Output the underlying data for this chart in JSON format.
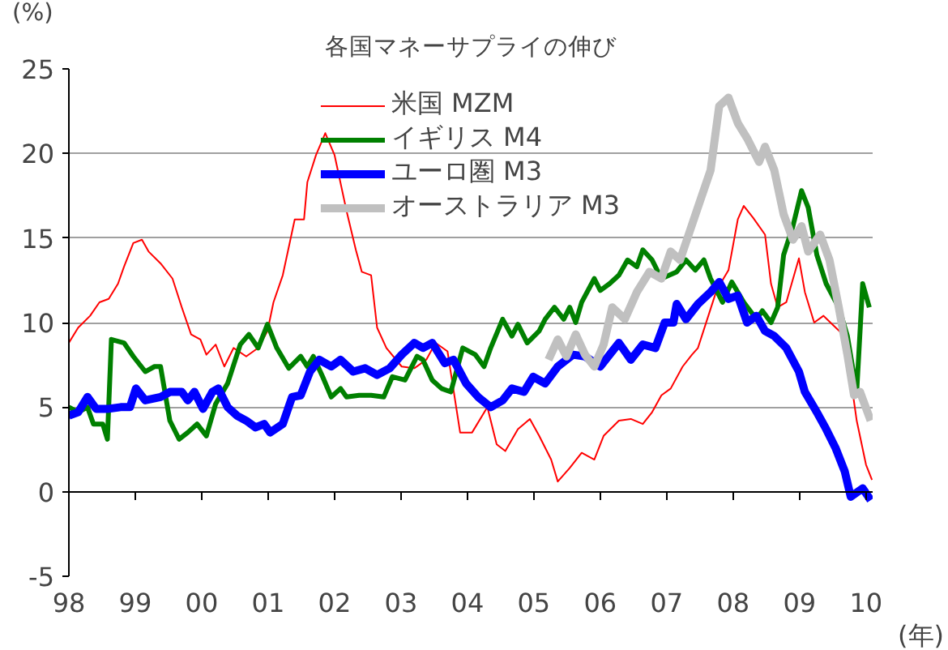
{
  "chart_data": {
    "type": "line",
    "title": "各国マネーサプライの伸び",
    "ylabel": "(%)",
    "xlabel": "(年)",
    "xlim": [
      1998,
      2010.1
    ],
    "ylim": [
      -5,
      25
    ],
    "xticks": [
      {
        "value": 1998,
        "label": "98"
      },
      {
        "value": 1999,
        "label": "99"
      },
      {
        "value": 2000,
        "label": "00"
      },
      {
        "value": 2001,
        "label": "01"
      },
      {
        "value": 2002,
        "label": "02"
      },
      {
        "value": 2003,
        "label": "03"
      },
      {
        "value": 2004,
        "label": "04"
      },
      {
        "value": 2005,
        "label": "05"
      },
      {
        "value": 2006,
        "label": "06"
      },
      {
        "value": 2007,
        "label": "07"
      },
      {
        "value": 2008,
        "label": "08"
      },
      {
        "value": 2009,
        "label": "09"
      },
      {
        "value": 2010,
        "label": "10"
      }
    ],
    "yticks": [
      -5,
      0,
      5,
      10,
      15,
      20,
      25
    ],
    "grid": "y",
    "legend": "top",
    "line_style": "solid",
    "marker": "none",
    "series": [
      {
        "name": "米国 MZM",
        "color": "#ff0000",
        "x": [
          1998.0,
          1998.14,
          1998.32,
          1998.46,
          1998.6,
          1998.74,
          1998.83,
          1998.97,
          1999.1,
          1999.2,
          1999.38,
          1999.56,
          1999.7,
          1999.84,
          1999.98,
          2000.07,
          2000.21,
          2000.34,
          2000.48,
          2000.67,
          2000.85,
          2000.99,
          2001.08,
          2001.22,
          2001.4,
          2001.54,
          2001.59,
          2001.72,
          2001.86,
          2002.0,
          2002.18,
          2002.32,
          2002.41,
          2002.55,
          2002.64,
          2002.78,
          2003.01,
          2003.2,
          2003.38,
          2003.52,
          2003.7,
          2003.89,
          2004.07,
          2004.3,
          2004.44,
          2004.57,
          2004.76,
          2004.94,
          2005.08,
          2005.26,
          2005.36,
          2005.54,
          2005.72,
          2005.91,
          2006.05,
          2006.28,
          2006.46,
          2006.64,
          2006.78,
          2006.92,
          2007.06,
          2007.24,
          2007.38,
          2007.47,
          2007.61,
          2007.75,
          2007.93,
          2008.07,
          2008.16,
          2008.3,
          2008.48,
          2008.57,
          2008.67,
          2008.8,
          2008.99,
          2009.08,
          2009.22,
          2009.36,
          2009.49,
          2009.68,
          2009.86,
          2010.0,
          2010.09
        ],
        "values": [
          8.8,
          9.7,
          10.4,
          11.2,
          11.4,
          12.3,
          13.3,
          14.7,
          14.9,
          14.2,
          13.5,
          12.6,
          10.9,
          9.3,
          9.0,
          8.1,
          8.7,
          7.4,
          8.5,
          8.0,
          8.5,
          9.5,
          11.2,
          12.8,
          16.1,
          16.1,
          18.3,
          19.9,
          21.2,
          19.9,
          16.6,
          14.3,
          13.0,
          12.8,
          9.7,
          8.5,
          7.4,
          7.3,
          7.8,
          8.8,
          8.3,
          3.5,
          3.5,
          5.0,
          2.8,
          2.4,
          3.7,
          4.3,
          3.3,
          1.9,
          0.6,
          1.4,
          2.3,
          1.9,
          3.3,
          4.2,
          4.3,
          4.0,
          4.7,
          5.7,
          6.1,
          7.4,
          8.1,
          8.5,
          10.2,
          11.9,
          13.1,
          16.1,
          16.9,
          16.2,
          15.2,
          12.3,
          10.9,
          11.2,
          13.8,
          11.8,
          10.0,
          10.4,
          9.9,
          9.2,
          4.2,
          1.6,
          0.7
        ]
      },
      {
        "name": "イギリス M4",
        "color": "#008000",
        "x": [
          1998.0,
          1998.14,
          1998.28,
          1998.37,
          1998.51,
          1998.58,
          1998.64,
          1998.83,
          1998.97,
          1999.15,
          1999.29,
          1999.38,
          1999.52,
          1999.66,
          1999.79,
          1999.93,
          2000.07,
          2000.21,
          2000.39,
          2000.58,
          2000.71,
          2000.85,
          2000.99,
          2001.13,
          2001.31,
          2001.49,
          2001.59,
          2001.68,
          2001.82,
          2001.95,
          2002.09,
          2002.18,
          2002.37,
          2002.55,
          2002.74,
          2002.87,
          2003.06,
          2003.24,
          2003.33,
          2003.47,
          2003.61,
          2003.75,
          2003.93,
          2004.12,
          2004.25,
          2004.35,
          2004.53,
          2004.67,
          2004.76,
          2004.9,
          2005.08,
          2005.17,
          2005.31,
          2005.45,
          2005.54,
          2005.63,
          2005.72,
          2005.91,
          2006.0,
          2006.14,
          2006.28,
          2006.41,
          2006.55,
          2006.64,
          2006.78,
          2006.92,
          2007.15,
          2007.29,
          2007.43,
          2007.56,
          2007.66,
          2007.84,
          2007.98,
          2008.16,
          2008.35,
          2008.44,
          2008.57,
          2008.67,
          2008.76,
          2008.9,
          2009.03,
          2009.13,
          2009.26,
          2009.4,
          2009.59,
          2009.72,
          2009.86,
          2009.95,
          2010.05
        ],
        "values": [
          5.0,
          4.7,
          5.0,
          4.0,
          4.0,
          3.1,
          9.0,
          8.8,
          8.0,
          7.1,
          7.4,
          7.4,
          4.2,
          3.1,
          3.5,
          4.0,
          3.3,
          5.2,
          6.4,
          8.7,
          9.3,
          8.5,
          9.9,
          8.5,
          7.3,
          8.0,
          7.4,
          8.0,
          6.8,
          5.6,
          6.1,
          5.6,
          5.7,
          5.7,
          5.6,
          6.8,
          6.6,
          8.0,
          7.8,
          6.6,
          6.1,
          5.9,
          8.5,
          8.1,
          7.4,
          8.5,
          10.2,
          9.2,
          9.9,
          8.8,
          9.5,
          10.2,
          10.9,
          10.2,
          10.9,
          10.0,
          11.2,
          12.6,
          11.9,
          12.3,
          12.8,
          13.7,
          13.3,
          14.3,
          13.7,
          12.6,
          13.0,
          13.7,
          13.1,
          13.7,
          12.6,
          11.2,
          12.4,
          11.2,
          10.2,
          10.7,
          10.0,
          10.9,
          14.0,
          15.7,
          17.8,
          16.8,
          14.0,
          12.3,
          10.9,
          9.2,
          5.9,
          12.3,
          10.9
        ]
      },
      {
        "name": "ユーロ圏 M3",
        "color": "#0000ff",
        "x": [
          1998.0,
          1998.14,
          1998.28,
          1998.41,
          1998.6,
          1998.78,
          1998.92,
          1999.01,
          1999.15,
          1999.38,
          1999.52,
          1999.7,
          1999.79,
          1999.89,
          2000.02,
          2000.16,
          2000.25,
          2000.39,
          2000.53,
          2000.67,
          2000.81,
          2000.94,
          2001.03,
          2001.22,
          2001.36,
          2001.49,
          2001.63,
          2001.77,
          2001.95,
          2002.09,
          2002.28,
          2002.46,
          2002.64,
          2002.83,
          2003.01,
          2003.2,
          2003.33,
          2003.47,
          2003.66,
          2003.79,
          2003.98,
          2004.16,
          2004.35,
          2004.53,
          2004.67,
          2004.85,
          2004.99,
          2005.17,
          2005.36,
          2005.59,
          2005.77,
          2006.0,
          2006.14,
          2006.28,
          2006.46,
          2006.64,
          2006.83,
          2006.97,
          2007.1,
          2007.15,
          2007.29,
          2007.47,
          2007.66,
          2007.79,
          2007.93,
          2008.07,
          2008.21,
          2008.35,
          2008.48,
          2008.62,
          2008.8,
          2008.99,
          2009.08,
          2009.26,
          2009.4,
          2009.54,
          2009.68,
          2009.77,
          2009.95,
          2010.07
        ],
        "values": [
          4.5,
          4.7,
          5.6,
          4.9,
          4.9,
          5.0,
          5.0,
          6.1,
          5.4,
          5.6,
          5.9,
          5.9,
          5.4,
          5.9,
          4.9,
          5.9,
          6.1,
          5.0,
          4.5,
          4.2,
          3.8,
          4.0,
          3.5,
          4.0,
          5.6,
          5.7,
          7.1,
          7.8,
          7.4,
          7.8,
          7.1,
          7.3,
          6.9,
          7.3,
          8.1,
          8.8,
          8.5,
          8.8,
          7.6,
          7.8,
          6.4,
          5.6,
          5.0,
          5.4,
          6.1,
          5.9,
          6.8,
          6.4,
          7.4,
          8.1,
          8.0,
          7.4,
          8.1,
          8.8,
          7.8,
          8.7,
          8.5,
          10.0,
          10.0,
          11.1,
          10.2,
          11.1,
          11.8,
          12.4,
          11.4,
          11.6,
          10.0,
          10.4,
          9.5,
          9.2,
          8.5,
          7.1,
          5.9,
          4.7,
          3.7,
          2.6,
          1.2,
          -0.3,
          0.2,
          -0.5
        ]
      },
      {
        "name": "オーストラリア M3",
        "color": "#c0c0c0",
        "x": [
          2005.22,
          2005.36,
          2005.49,
          2005.63,
          2005.77,
          2005.91,
          2006.05,
          2006.18,
          2006.37,
          2006.55,
          2006.74,
          2006.92,
          2007.06,
          2007.2,
          2007.33,
          2007.52,
          2007.66,
          2007.79,
          2007.93,
          2008.07,
          2008.21,
          2008.39,
          2008.48,
          2008.62,
          2008.76,
          2008.9,
          2009.03,
          2009.13,
          2009.31,
          2009.45,
          2009.59,
          2009.72,
          2009.82,
          2009.91,
          2010.07
        ],
        "values": [
          7.8,
          9.0,
          8.0,
          9.3,
          8.1,
          7.4,
          8.7,
          10.9,
          10.2,
          11.8,
          13.0,
          12.6,
          14.2,
          13.7,
          15.2,
          17.4,
          19.0,
          22.8,
          23.3,
          21.8,
          20.9,
          19.5,
          20.4,
          19.0,
          16.4,
          14.9,
          15.7,
          14.2,
          15.2,
          13.7,
          10.9,
          8.1,
          5.7,
          5.9,
          4.2
        ]
      }
    ]
  }
}
